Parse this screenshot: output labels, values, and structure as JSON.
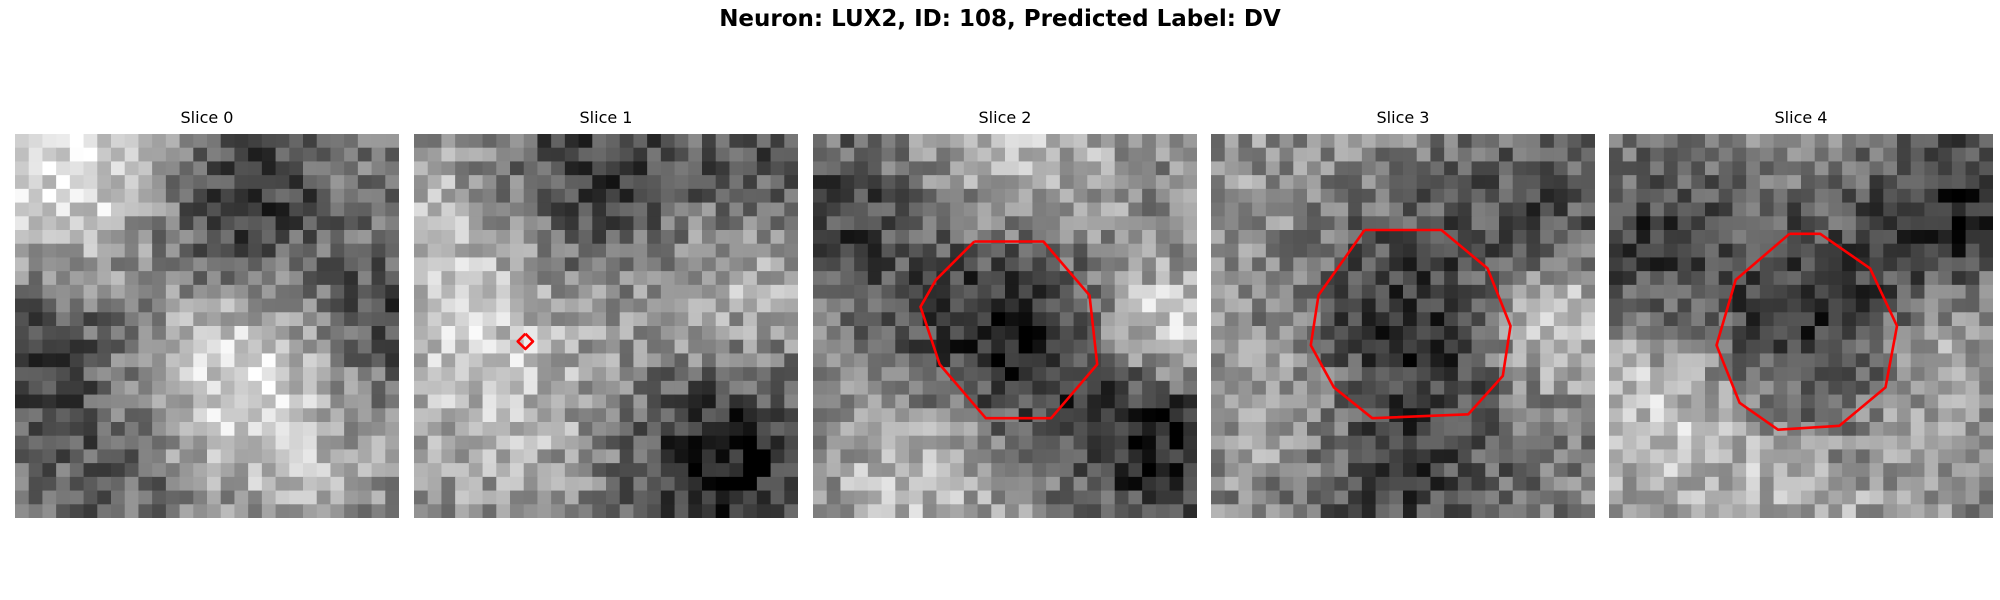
{
  "figure": {
    "suptitle": "Neuron: LUX2, ID: 108, Predicted Label: DV",
    "colormap": "gray",
    "contour_color": "#ff0000",
    "grid_size": 28
  },
  "panels": [
    {
      "title": "Slice 0",
      "seed": 11,
      "blobs": [
        [
          0.2,
          0.1,
          0.22,
          0.45
        ],
        [
          0.55,
          0.22,
          0.2,
          -0.5
        ],
        [
          0.6,
          0.6,
          0.25,
          0.45
        ],
        [
          0.12,
          0.55,
          0.18,
          -0.3
        ],
        [
          0.95,
          0.5,
          0.15,
          -0.35
        ],
        [
          0.3,
          0.9,
          0.18,
          -0.2
        ]
      ],
      "contours": []
    },
    {
      "title": "Slice 1",
      "seed": 23,
      "blobs": [
        [
          0.45,
          0.15,
          0.2,
          -0.4
        ],
        [
          0.15,
          0.3,
          0.22,
          0.3
        ],
        [
          0.8,
          0.35,
          0.2,
          0.25
        ],
        [
          0.8,
          0.85,
          0.18,
          -0.45
        ],
        [
          0.25,
          0.7,
          0.2,
          0.2
        ],
        [
          0.9,
          0.12,
          0.15,
          -0.25
        ]
      ],
      "contours": [
        [
          [
            0.29,
            0.52
          ],
          [
            0.31,
            0.54
          ],
          [
            0.29,
            0.56
          ],
          [
            0.27,
            0.54
          ],
          [
            0.29,
            0.52
          ]
        ]
      ]
    },
    {
      "title": "Slice 2",
      "seed": 37,
      "blobs": [
        [
          0.5,
          0.52,
          0.22,
          -0.45
        ],
        [
          0.9,
          0.5,
          0.12,
          0.4
        ],
        [
          0.3,
          0.85,
          0.18,
          0.3
        ],
        [
          0.55,
          0.1,
          0.2,
          0.25
        ],
        [
          0.08,
          0.2,
          0.15,
          -0.25
        ],
        [
          0.9,
          0.8,
          0.15,
          -0.4
        ]
      ],
      "contours": [
        [
          [
            0.42,
            0.28
          ],
          [
            0.6,
            0.28
          ],
          [
            0.72,
            0.42
          ],
          [
            0.74,
            0.6
          ],
          [
            0.62,
            0.74
          ],
          [
            0.45,
            0.74
          ],
          [
            0.33,
            0.6
          ],
          [
            0.28,
            0.45
          ],
          [
            0.32,
            0.38
          ],
          [
            0.42,
            0.28
          ]
        ]
      ]
    },
    {
      "title": "Slice 3",
      "seed": 53,
      "blobs": [
        [
          0.5,
          0.5,
          0.24,
          -0.35
        ],
        [
          0.2,
          0.2,
          0.2,
          0.1
        ],
        [
          0.88,
          0.5,
          0.12,
          0.4
        ],
        [
          0.2,
          0.7,
          0.15,
          0.25
        ],
        [
          0.5,
          0.95,
          0.18,
          -0.2
        ],
        [
          0.9,
          0.15,
          0.15,
          -0.2
        ]
      ],
      "contours": [
        [
          [
            0.4,
            0.25
          ],
          [
            0.6,
            0.25
          ],
          [
            0.72,
            0.35
          ],
          [
            0.78,
            0.5
          ],
          [
            0.76,
            0.63
          ],
          [
            0.67,
            0.73
          ],
          [
            0.42,
            0.74
          ],
          [
            0.32,
            0.66
          ],
          [
            0.26,
            0.55
          ],
          [
            0.28,
            0.42
          ],
          [
            0.4,
            0.25
          ]
        ]
      ]
    },
    {
      "title": "Slice 4",
      "seed": 71,
      "blobs": [
        [
          0.52,
          0.52,
          0.22,
          -0.4
        ],
        [
          0.08,
          0.3,
          0.15,
          -0.3
        ],
        [
          0.92,
          0.2,
          0.15,
          -0.35
        ],
        [
          0.15,
          0.7,
          0.2,
          0.3
        ],
        [
          0.85,
          0.6,
          0.15,
          0.25
        ],
        [
          0.5,
          0.92,
          0.2,
          0.2
        ]
      ],
      "contours": [
        [
          [
            0.47,
            0.26
          ],
          [
            0.55,
            0.26
          ],
          [
            0.68,
            0.35
          ],
          [
            0.75,
            0.5
          ],
          [
            0.72,
            0.66
          ],
          [
            0.6,
            0.76
          ],
          [
            0.44,
            0.77
          ],
          [
            0.34,
            0.7
          ],
          [
            0.28,
            0.55
          ],
          [
            0.33,
            0.38
          ],
          [
            0.47,
            0.26
          ]
        ]
      ]
    }
  ]
}
